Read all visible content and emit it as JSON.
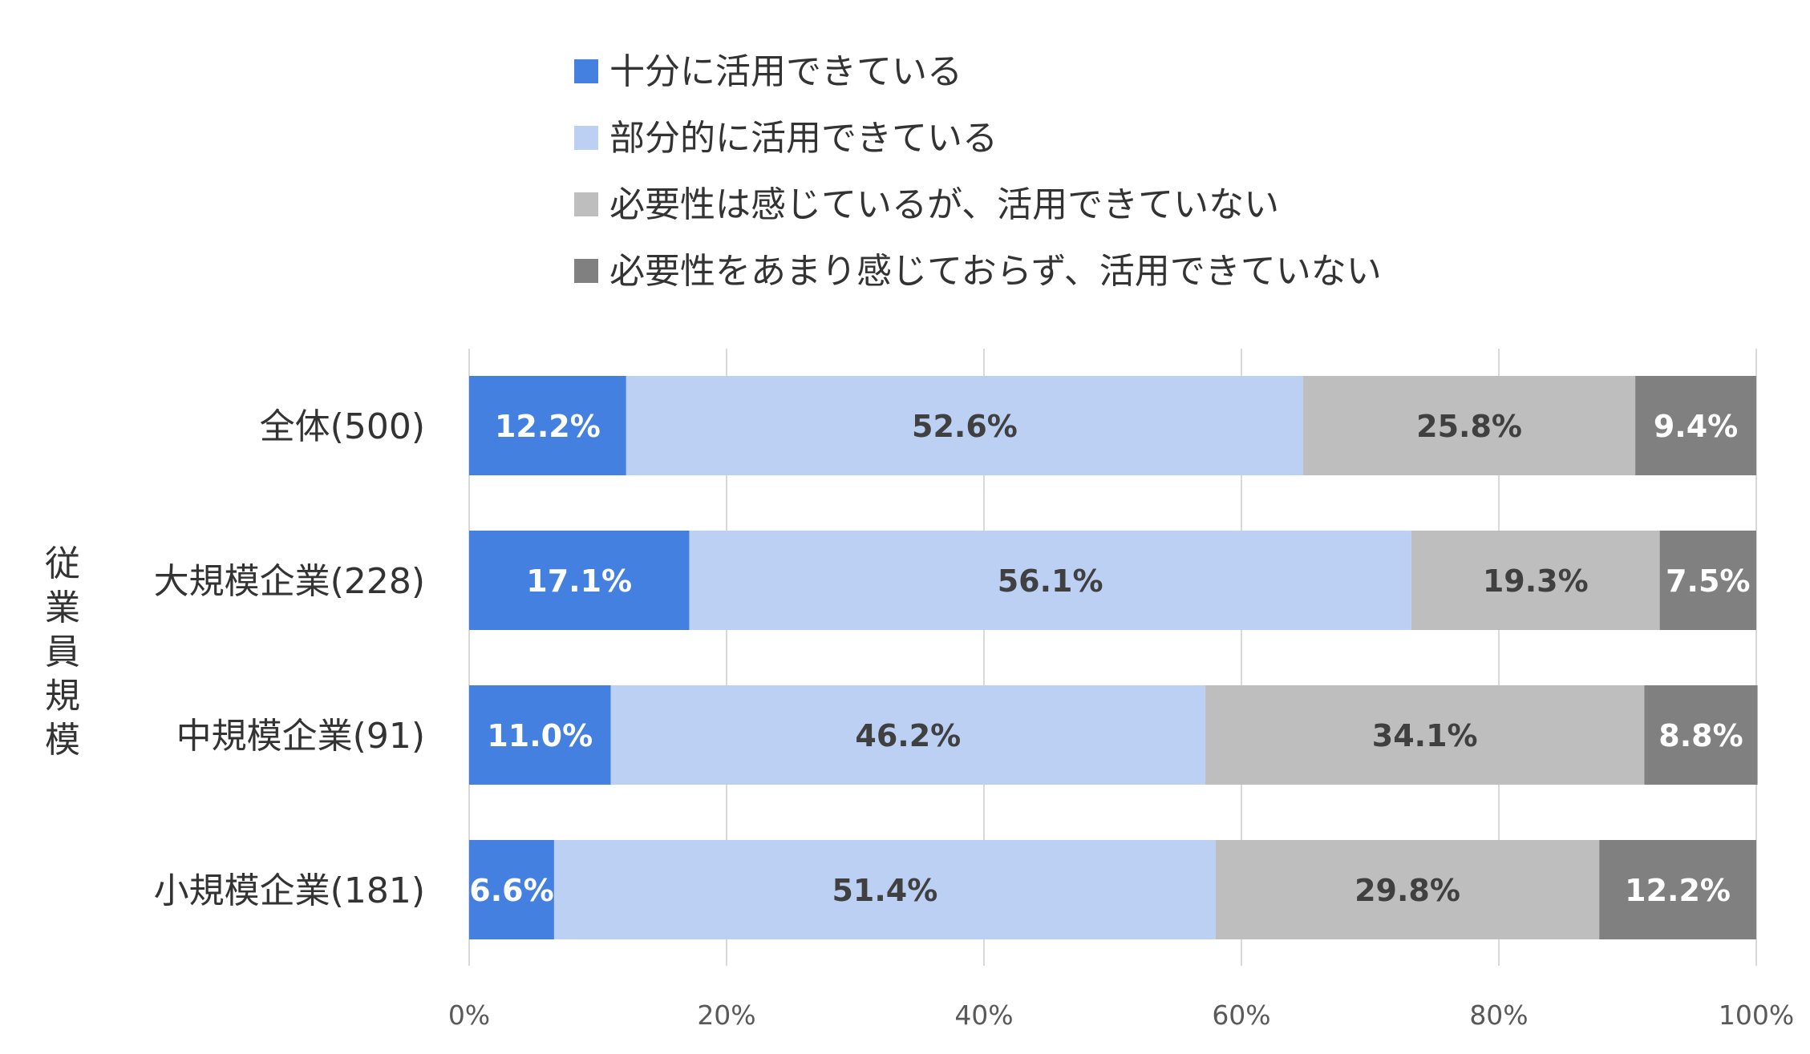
{
  "chart_data": {
    "type": "bar",
    "orientation": "horizontal",
    "stacked": "percent",
    "y_axis_title": "従業員規模",
    "categories": [
      "全体(500)",
      "大規模企業(228)",
      "中規模企業(91)",
      "小規模企業(181)"
    ],
    "series": [
      {
        "name": "十分に活用できている",
        "color": "#4380e0",
        "label_color": "#ffffff",
        "values": [
          12.2,
          17.1,
          11.0,
          6.6
        ]
      },
      {
        "name": "部分的に活用できている",
        "color": "#bcd0f4",
        "label_color": "#404040",
        "values": [
          52.6,
          56.1,
          46.2,
          51.4
        ]
      },
      {
        "name": "必要性は感じているが、活用できていない",
        "color": "#bebebe",
        "label_color": "#404040",
        "values": [
          25.8,
          19.3,
          34.1,
          29.8
        ]
      },
      {
        "name": "必要性をあまり感じておらず、活用できていない",
        "color": "#808080",
        "label_color": "#ffffff",
        "values": [
          9.4,
          7.5,
          8.8,
          12.2
        ]
      }
    ],
    "data_labels": [
      [
        "12.2%",
        "52.6%",
        "25.8%",
        "9.4%"
      ],
      [
        "17.1%",
        "56.1%",
        "19.3%",
        "7.5%"
      ],
      [
        "11.0%",
        "46.2%",
        "34.1%",
        "8.8%"
      ],
      [
        "6.6%",
        "51.4%",
        "29.8%",
        "12.2%"
      ]
    ],
    "x_ticks": [
      "0%",
      "20%",
      "40%",
      "60%",
      "80%",
      "100%"
    ],
    "xlim": [
      0,
      100
    ],
    "grid": true,
    "legend_position": "top"
  }
}
